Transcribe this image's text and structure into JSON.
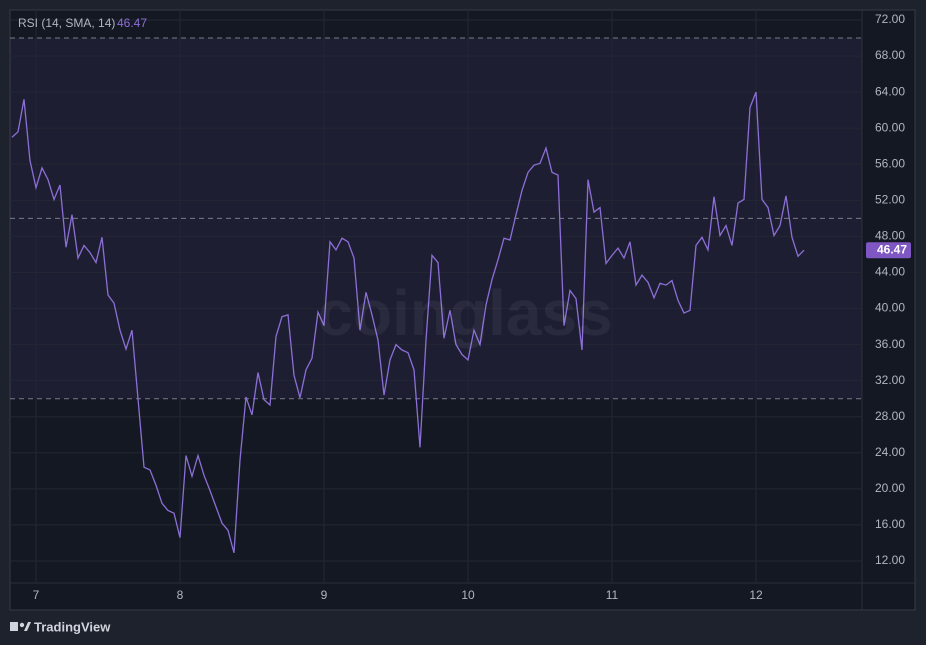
{
  "chart_data": {
    "type": "line",
    "title": "RSI (14, SMA, 14)",
    "watermark": "coinglass",
    "branding": "TradingView",
    "categories": [
      null,
      null,
      null,
      null,
      "7",
      null,
      null,
      null,
      null,
      null,
      null,
      null,
      null,
      null,
      null,
      null,
      null,
      null,
      null,
      null,
      null,
      null,
      null,
      null,
      null,
      null,
      null,
      null,
      "8",
      null,
      null,
      null,
      null,
      null,
      null,
      null,
      null,
      null,
      null,
      null,
      null,
      null,
      null,
      null,
      null,
      null,
      null,
      null,
      null,
      null,
      null,
      null,
      "9",
      null,
      null,
      null,
      null,
      null,
      null,
      null,
      null,
      null,
      null,
      null,
      null,
      null,
      null,
      null,
      null,
      null,
      null,
      null,
      null,
      null,
      null,
      null,
      "10",
      null,
      null,
      null,
      null,
      null,
      null,
      null,
      null,
      null,
      null,
      null,
      null,
      null,
      null,
      null,
      null,
      null,
      null,
      null,
      null,
      null,
      null,
      null,
      "11",
      null,
      null,
      null,
      null,
      null,
      null,
      null,
      null,
      null,
      null,
      null,
      null,
      null,
      null,
      null,
      null,
      null,
      null,
      null,
      null,
      null,
      null,
      null,
      "12",
      null,
      null,
      null,
      null,
      null,
      null,
      null,
      null
    ],
    "series": [
      {
        "name": "RSI",
        "color": "#8c6fd6",
        "values": [
          59,
          59.6,
          63.2,
          56.4,
          53.4,
          55.6,
          54.3,
          52.1,
          53.7,
          46.8,
          50.4,
          45.6,
          47,
          46.2,
          45.1,
          47.9,
          41.5,
          40.6,
          37.6,
          35.5,
          37.6,
          30,
          22.4,
          22.1,
          20.4,
          18.4,
          17.6,
          17.3,
          14.6,
          23.7,
          21.4,
          23.7,
          21.5,
          19.8,
          18,
          16.2,
          15.4,
          12.9,
          23.2,
          30.2,
          28.2,
          32.9,
          29.9,
          29.3,
          36.9,
          39.1,
          39.3,
          32.6,
          30.1,
          33.2,
          34.5,
          39.6,
          38.1,
          47.4,
          46.5,
          47.8,
          47.4,
          45.6,
          37.6,
          41.8,
          39.3,
          36.5,
          30.4,
          34.3,
          36,
          35.4,
          35.1,
          33.2,
          24.6,
          36.5,
          45.9,
          45.1,
          36.7,
          39.8,
          36,
          34.9,
          34.3,
          37.6,
          36,
          40.4,
          43.2,
          45.4,
          47.8,
          47.6,
          50.4,
          53.1,
          55.1,
          55.9,
          56.1,
          57.8,
          55.1,
          54.8,
          38.1,
          42,
          41.1,
          35.4,
          54.3,
          50.7,
          51.2,
          45,
          45.9,
          46.7,
          45.6,
          47.4,
          42.6,
          43.7,
          42.9,
          41.2,
          42.8,
          42.6,
          43.1,
          40.9,
          39.5,
          39.8,
          47,
          47.9,
          46.5,
          52.4,
          48.1,
          49.2,
          47,
          51.7,
          52.1,
          62.3,
          64,
          52.1,
          51.2,
          48.1,
          49.2,
          52.5,
          47.9,
          45.8,
          46.47
        ]
      }
    ],
    "ylim": [
      9.56,
      73.11
    ],
    "yticks": [
      {
        "value": 12,
        "label": "12.00"
      },
      {
        "value": 16,
        "label": "16.00"
      },
      {
        "value": 20,
        "label": "20.00"
      },
      {
        "value": 24,
        "label": "24.00"
      },
      {
        "value": 28,
        "label": "28.00"
      },
      {
        "value": 32,
        "label": "32.00"
      },
      {
        "value": 36,
        "label": "36.00"
      },
      {
        "value": 40,
        "label": "40.00"
      },
      {
        "value": 44,
        "label": "44.00"
      },
      {
        "value": 48,
        "label": "48.00"
      },
      {
        "value": 52,
        "label": "52.00"
      },
      {
        "value": 56,
        "label": "56.00"
      },
      {
        "value": 60,
        "label": "60.00"
      },
      {
        "value": 64,
        "label": "64.00"
      },
      {
        "value": 68,
        "label": "68.00"
      },
      {
        "value": 72,
        "label": "72.00"
      }
    ],
    "band": [
      30,
      70
    ],
    "reference_lines": [
      70,
      50,
      30
    ],
    "grid": true
  }
}
